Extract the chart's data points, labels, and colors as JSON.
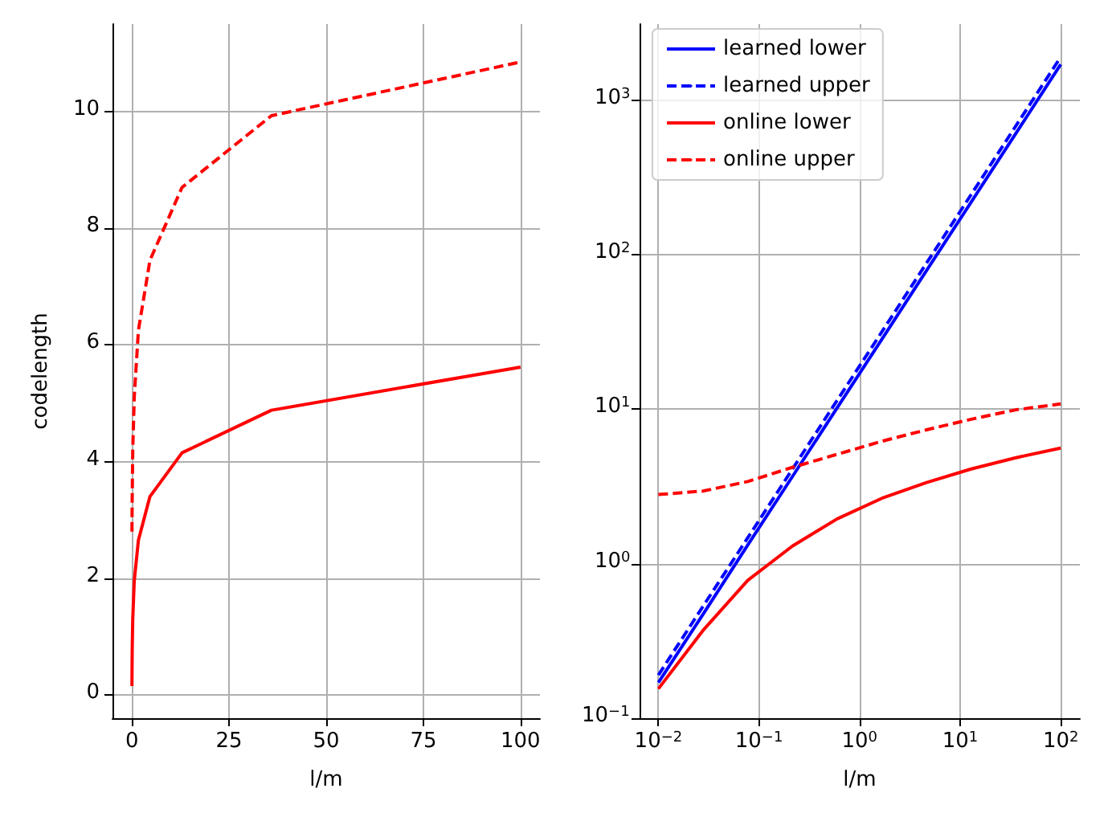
{
  "chart_data": [
    {
      "type": "line",
      "xlabel": "l/m",
      "ylabel": "codelength",
      "xlim": [
        -5,
        105
      ],
      "ylim": [
        -0.4,
        11.5
      ],
      "xticks": [
        0,
        25,
        50,
        75,
        100
      ],
      "yticks": [
        0,
        2,
        4,
        6,
        8,
        10
      ],
      "grid": true,
      "legend": false,
      "marker": "none",
      "x": [
        0.01,
        0.0278,
        0.0774,
        0.215,
        0.599,
        1.67,
        4.64,
        12.9,
        35.9,
        100
      ],
      "series": [
        {
          "color": "#ff0000",
          "line_style": "solid",
          "values": [
            0.15,
            0.37,
            0.78,
            1.3,
            1.95,
            2.65,
            3.4,
            4.15,
            4.88,
            5.62
          ]
        },
        {
          "color": "#ff0000",
          "line_style": "dashed",
          "values": [
            2.8,
            2.95,
            3.4,
            4.2,
            5.1,
            6.25,
            7.45,
            8.7,
            9.93,
            10.85
          ]
        }
      ]
    },
    {
      "type": "line",
      "xlabel": "l/m",
      "log": "xy",
      "xlim": [
        0.0065,
        155
      ],
      "ylim": [
        0.1,
        3100
      ],
      "xticks": [
        {
          "value": 0.01,
          "label": "10$^{−2}$"
        },
        {
          "value": 0.1,
          "label": "10$^{−1}$"
        },
        {
          "value": 1,
          "label": "10$^{0}$"
        },
        {
          "value": 10,
          "label": "10$^{1}$"
        },
        {
          "value": 100,
          "label": "10$^{2}$"
        }
      ],
      "yticks": [
        {
          "value": 0.1,
          "label": "10$^{−1}$"
        },
        {
          "value": 1,
          "label": "10$^{0}$"
        },
        {
          "value": 10,
          "label": "10$^{1}$"
        },
        {
          "value": 100,
          "label": "10$^{2}$"
        },
        {
          "value": 1000,
          "label": "10$^{3}$"
        }
      ],
      "grid": true,
      "legend": "top left",
      "marker": "none",
      "x": [
        0.01,
        0.0278,
        0.0774,
        0.215,
        0.599,
        1.67,
        4.64,
        12.9,
        35.9,
        100
      ],
      "series": [
        {
          "name": "learned lower",
          "color": "#0000ff",
          "line_style": "solid",
          "values": [
            0.17,
            0.47,
            1.32,
            3.66,
            10.2,
            28.4,
            78.9,
            219,
            610,
            1700
          ]
        },
        {
          "name": "learned upper",
          "color": "#0000ff",
          "line_style": "dashed",
          "values": [
            0.19,
            0.53,
            1.47,
            4.09,
            11.4,
            31.7,
            88.2,
            245,
            682,
            1900
          ]
        },
        {
          "name": "online lower",
          "color": "#ff0000",
          "line_style": "solid",
          "values": [
            0.155,
            0.37,
            0.78,
            1.3,
            1.95,
            2.65,
            3.35,
            4.1,
            4.85,
            5.6
          ]
        },
        {
          "name": "online upper",
          "color": "#ff0000",
          "line_style": "dashed",
          "values": [
            2.8,
            2.95,
            3.4,
            4.2,
            5.1,
            6.2,
            7.35,
            8.6,
            9.9,
            10.8
          ]
        }
      ]
    }
  ]
}
